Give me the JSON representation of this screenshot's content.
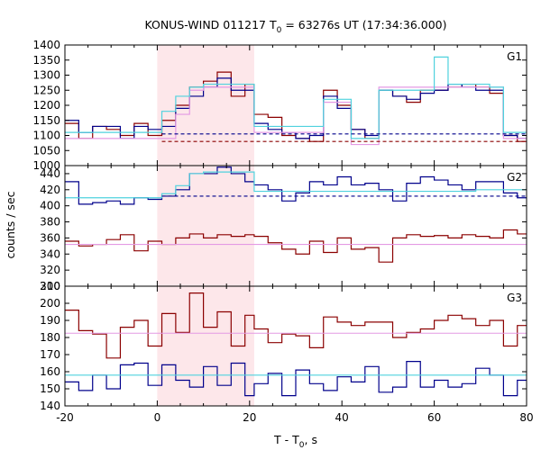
{
  "chart_data": {
    "type": "line",
    "title_prefix": "KONUS-WIND 011217 T",
    "title_sub": "0",
    "title_suffix": " = 63276s UT (17:34:36.000)",
    "ylabel": "counts / sec",
    "xlabel_prefix": "T - T",
    "xlabel_sub": "0",
    "xlabel_suffix": ", s",
    "xlim": [
      -20,
      80
    ],
    "x_ticks": [
      -20,
      0,
      20,
      40,
      60,
      80
    ],
    "highlight_interval": [
      0,
      21
    ],
    "colors": {
      "highlight": "#fde7ea",
      "dark_red": "#8b0000",
      "navy": "#00008b",
      "cyan": "#4fd2de",
      "violet": "#e49ae4"
    },
    "bin_edges": [
      -20,
      -17,
      -14,
      -11,
      -8,
      -5,
      -2,
      1,
      4,
      7,
      10,
      13,
      16,
      19,
      21,
      24,
      27,
      30,
      33,
      36,
      39,
      42,
      45,
      48,
      51,
      54,
      57,
      60,
      63,
      66,
      69,
      72,
      75,
      78,
      80
    ],
    "panels": [
      {
        "label": "G1",
        "ylim": [
          1000,
          1400
        ],
        "yticks": [
          1000,
          1050,
          1100,
          1150,
          1200,
          1250,
          1300,
          1350,
          1400
        ],
        "series": [
          {
            "color": "#8b0000",
            "type": "step",
            "values": [
              1140,
              1090,
              1130,
              1120,
              1100,
              1140,
              1100,
              1150,
              1200,
              1260,
              1280,
              1310,
              1230,
              1270,
              1170,
              1160,
              1100,
              1090,
              1080,
              1250,
              1200,
              1120,
              1090,
              1250,
              1230,
              1210,
              1250,
              1250,
              1260,
              1270,
              1260,
              1240,
              1100,
              1080
            ]
          },
          {
            "color": "#00008b",
            "type": "step",
            "values": [
              1150,
              1110,
              1130,
              1130,
              1090,
              1130,
              1120,
              1130,
              1190,
              1230,
              1260,
              1290,
              1250,
              1250,
              1140,
              1120,
              1110,
              1090,
              1100,
              1230,
              1190,
              1120,
              1100,
              1250,
              1230,
              1220,
              1240,
              1250,
              1270,
              1260,
              1250,
              1250,
              1100,
              1090
            ]
          },
          {
            "color": "#e49ae4",
            "type": "step",
            "values": [
              1090,
              1090,
              1090,
              1090,
              1090,
              1090,
              1090,
              1090,
              1170,
              1250,
              1260,
              1260,
              1260,
              1260,
              1110,
              1110,
              1110,
              1110,
              1110,
              1210,
              1210,
              1070,
              1070,
              1260,
              1260,
              1260,
              1260,
              1260,
              1260,
              1260,
              1260,
              1260,
              1090,
              1090
            ]
          },
          {
            "color": "#4fd2de",
            "type": "step",
            "values": [
              1110,
              1110,
              1110,
              1110,
              1110,
              1110,
              1110,
              1180,
              1230,
              1260,
              1270,
              1270,
              1270,
              1270,
              1130,
              1130,
              1130,
              1130,
              1130,
              1220,
              1220,
              1090,
              1090,
              1250,
              1250,
              1250,
              1250,
              1360,
              1270,
              1270,
              1270,
              1260,
              1110,
              1110
            ]
          },
          {
            "color": "#00008b",
            "type": "dashed",
            "y": 1105,
            "x_start": 1
          },
          {
            "color": "#8b0000",
            "type": "dashed",
            "y": 1080,
            "x_start": 1
          }
        ]
      },
      {
        "label": "G2",
        "ylim": [
          300,
          450
        ],
        "yticks": [
          300,
          320,
          340,
          360,
          380,
          400,
          420,
          440
        ],
        "series": [
          {
            "color": "#8b0000",
            "type": "step",
            "values": [
              356,
              350,
              352,
              358,
              364,
              344,
              356,
              352,
              360,
              365,
              360,
              364,
              362,
              364,
              362,
              354,
              346,
              340,
              356,
              342,
              360,
              346,
              348,
              330,
              360,
              364,
              362,
              363,
              360,
              364,
              362,
              360,
              370,
              365
            ]
          },
          {
            "color": "#00008b",
            "type": "step",
            "values": [
              430,
              402,
              404,
              406,
              402,
              410,
              408,
              412,
              420,
              440,
              440,
              448,
              440,
              430,
              426,
              420,
              406,
              416,
              430,
              426,
              436,
              426,
              428,
              420,
              406,
              428,
              436,
              432,
              426,
              420,
              430,
              430,
              416,
              410
            ]
          },
          {
            "color": "#4fd2de",
            "type": "step",
            "values": [
              410,
              410,
              410,
              410,
              410,
              410,
              410,
              415,
              425,
              440,
              442,
              442,
              442,
              442,
              418,
              418,
              418,
              418,
              418,
              418,
              418,
              418,
              418,
              418,
              418,
              418,
              418,
              418,
              418,
              418,
              420,
              420,
              420,
              420
            ]
          },
          {
            "color": "#e49ae4",
            "type": "hline",
            "y": 352,
            "x_start": -20
          },
          {
            "color": "#00008b",
            "type": "dashed",
            "y": 412,
            "x_start": 1
          }
        ]
      },
      {
        "label": "G3",
        "ylim": [
          140,
          210
        ],
        "yticks": [
          140,
          150,
          160,
          170,
          180,
          190,
          200,
          210
        ],
        "series": [
          {
            "color": "#8b0000",
            "type": "step",
            "values": [
              196,
              184,
              182,
              168,
              186,
              190,
              175,
              194,
              183,
              206,
              186,
              195,
              175,
              193,
              185,
              177,
              182,
              181,
              174,
              192,
              189,
              187,
              189,
              189,
              180,
              183,
              185,
              190,
              193,
              191,
              187,
              190,
              175,
              187
            ]
          },
          {
            "color": "#00008b",
            "type": "step",
            "values": [
              154,
              149,
              158,
              150,
              164,
              165,
              152,
              164,
              155,
              151,
              163,
              152,
              165,
              146,
              153,
              159,
              146,
              161,
              153,
              149,
              157,
              154,
              163,
              148,
              151,
              166,
              151,
              155,
              151,
              153,
              162,
              158,
              146,
              155
            ]
          },
          {
            "color": "#e49ae4",
            "type": "hline",
            "y": 182.5,
            "x_start": -20
          },
          {
            "color": "#4fd2de",
            "type": "hline",
            "y": 158,
            "x_start": -20
          }
        ]
      }
    ]
  }
}
